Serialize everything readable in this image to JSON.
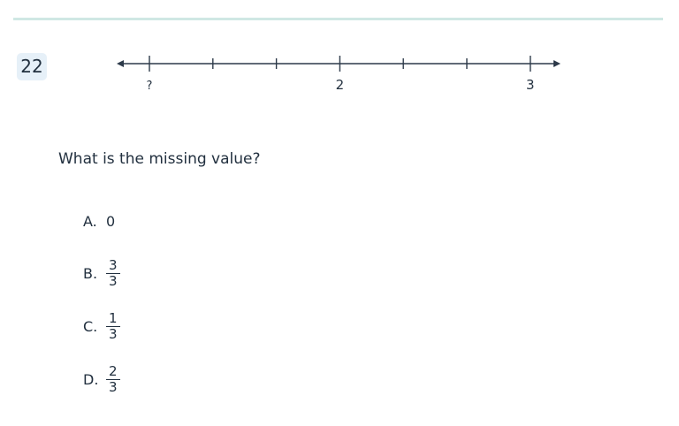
{
  "question_number": "22",
  "number_line": {
    "labels": [
      "?",
      "",
      "",
      "2",
      "",
      "",
      "3"
    ],
    "colors": {
      "line": "#2d3a4a",
      "rule": "#cfe8e4",
      "badge": "#e6f0f8"
    }
  },
  "question": "What is the missing value?",
  "options": [
    {
      "letter": "A.",
      "value": "0"
    },
    {
      "letter": "B.",
      "numerator": "3",
      "denominator": "3"
    },
    {
      "letter": "C.",
      "numerator": "1",
      "denominator": "3"
    },
    {
      "letter": "D.",
      "numerator": "2",
      "denominator": "3"
    }
  ]
}
